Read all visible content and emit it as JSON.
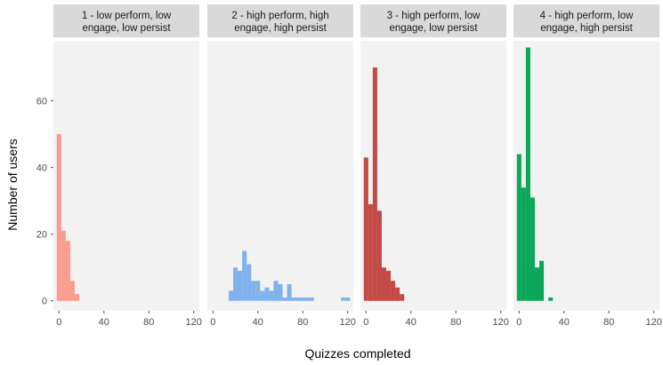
{
  "chart_data": {
    "type": "bar",
    "subtype": "faceted-histogram",
    "xlabel": "Quizzes completed",
    "ylabel": "Number of users",
    "xlim": [
      -5,
      125
    ],
    "ylim": [
      -3,
      78
    ],
    "xticks": [
      0,
      40,
      80,
      120
    ],
    "yticks": [
      0,
      20,
      40,
      60
    ],
    "bin_width": 4,
    "grid": false,
    "legend": "none",
    "panel_background": "#f2f2f2",
    "strip_background": "#d9d9d9",
    "facets": [
      {
        "title_lines": [
          "1 - low perform, low",
          "engage, low persist"
        ],
        "color": "#fa9c8e",
        "bins": [
          {
            "x": 0,
            "count": 50
          },
          {
            "x": 4,
            "count": 21
          },
          {
            "x": 8,
            "count": 18
          },
          {
            "x": 12,
            "count": 6
          },
          {
            "x": 16,
            "count": 2
          }
        ]
      },
      {
        "title_lines": [
          "2 - high perform, high",
          "engage, high persist"
        ],
        "color": "#7fb2ee",
        "bins": [
          {
            "x": 16,
            "count": 3
          },
          {
            "x": 20,
            "count": 10
          },
          {
            "x": 24,
            "count": 9
          },
          {
            "x": 28,
            "count": 15
          },
          {
            "x": 32,
            "count": 11
          },
          {
            "x": 36,
            "count": 6
          },
          {
            "x": 40,
            "count": 6
          },
          {
            "x": 44,
            "count": 3
          },
          {
            "x": 48,
            "count": 4
          },
          {
            "x": 52,
            "count": 3
          },
          {
            "x": 56,
            "count": 6
          },
          {
            "x": 60,
            "count": 5
          },
          {
            "x": 64,
            "count": 1
          },
          {
            "x": 68,
            "count": 5
          },
          {
            "x": 72,
            "count": 1
          },
          {
            "x": 76,
            "count": 1
          },
          {
            "x": 80,
            "count": 1
          },
          {
            "x": 84,
            "count": 1
          },
          {
            "x": 88,
            "count": 1
          },
          {
            "x": 116,
            "count": 1
          },
          {
            "x": 120,
            "count": 1
          }
        ]
      },
      {
        "title_lines": [
          "3 - high perform, low",
          "engage, low persist"
        ],
        "color": "#c44a46",
        "bins": [
          {
            "x": 0,
            "count": 43
          },
          {
            "x": 4,
            "count": 29
          },
          {
            "x": 8,
            "count": 70
          },
          {
            "x": 12,
            "count": 27
          },
          {
            "x": 16,
            "count": 10
          },
          {
            "x": 20,
            "count": 9
          },
          {
            "x": 24,
            "count": 6
          },
          {
            "x": 28,
            "count": 4
          },
          {
            "x": 32,
            "count": 2
          }
        ]
      },
      {
        "title_lines": [
          "4 - high perform, low",
          "engage, high persist"
        ],
        "color": "#0aa858",
        "bins": [
          {
            "x": 0,
            "count": 44
          },
          {
            "x": 4,
            "count": 34
          },
          {
            "x": 8,
            "count": 76
          },
          {
            "x": 12,
            "count": 31
          },
          {
            "x": 16,
            "count": 10
          },
          {
            "x": 20,
            "count": 12
          },
          {
            "x": 28,
            "count": 1
          }
        ]
      }
    ]
  }
}
